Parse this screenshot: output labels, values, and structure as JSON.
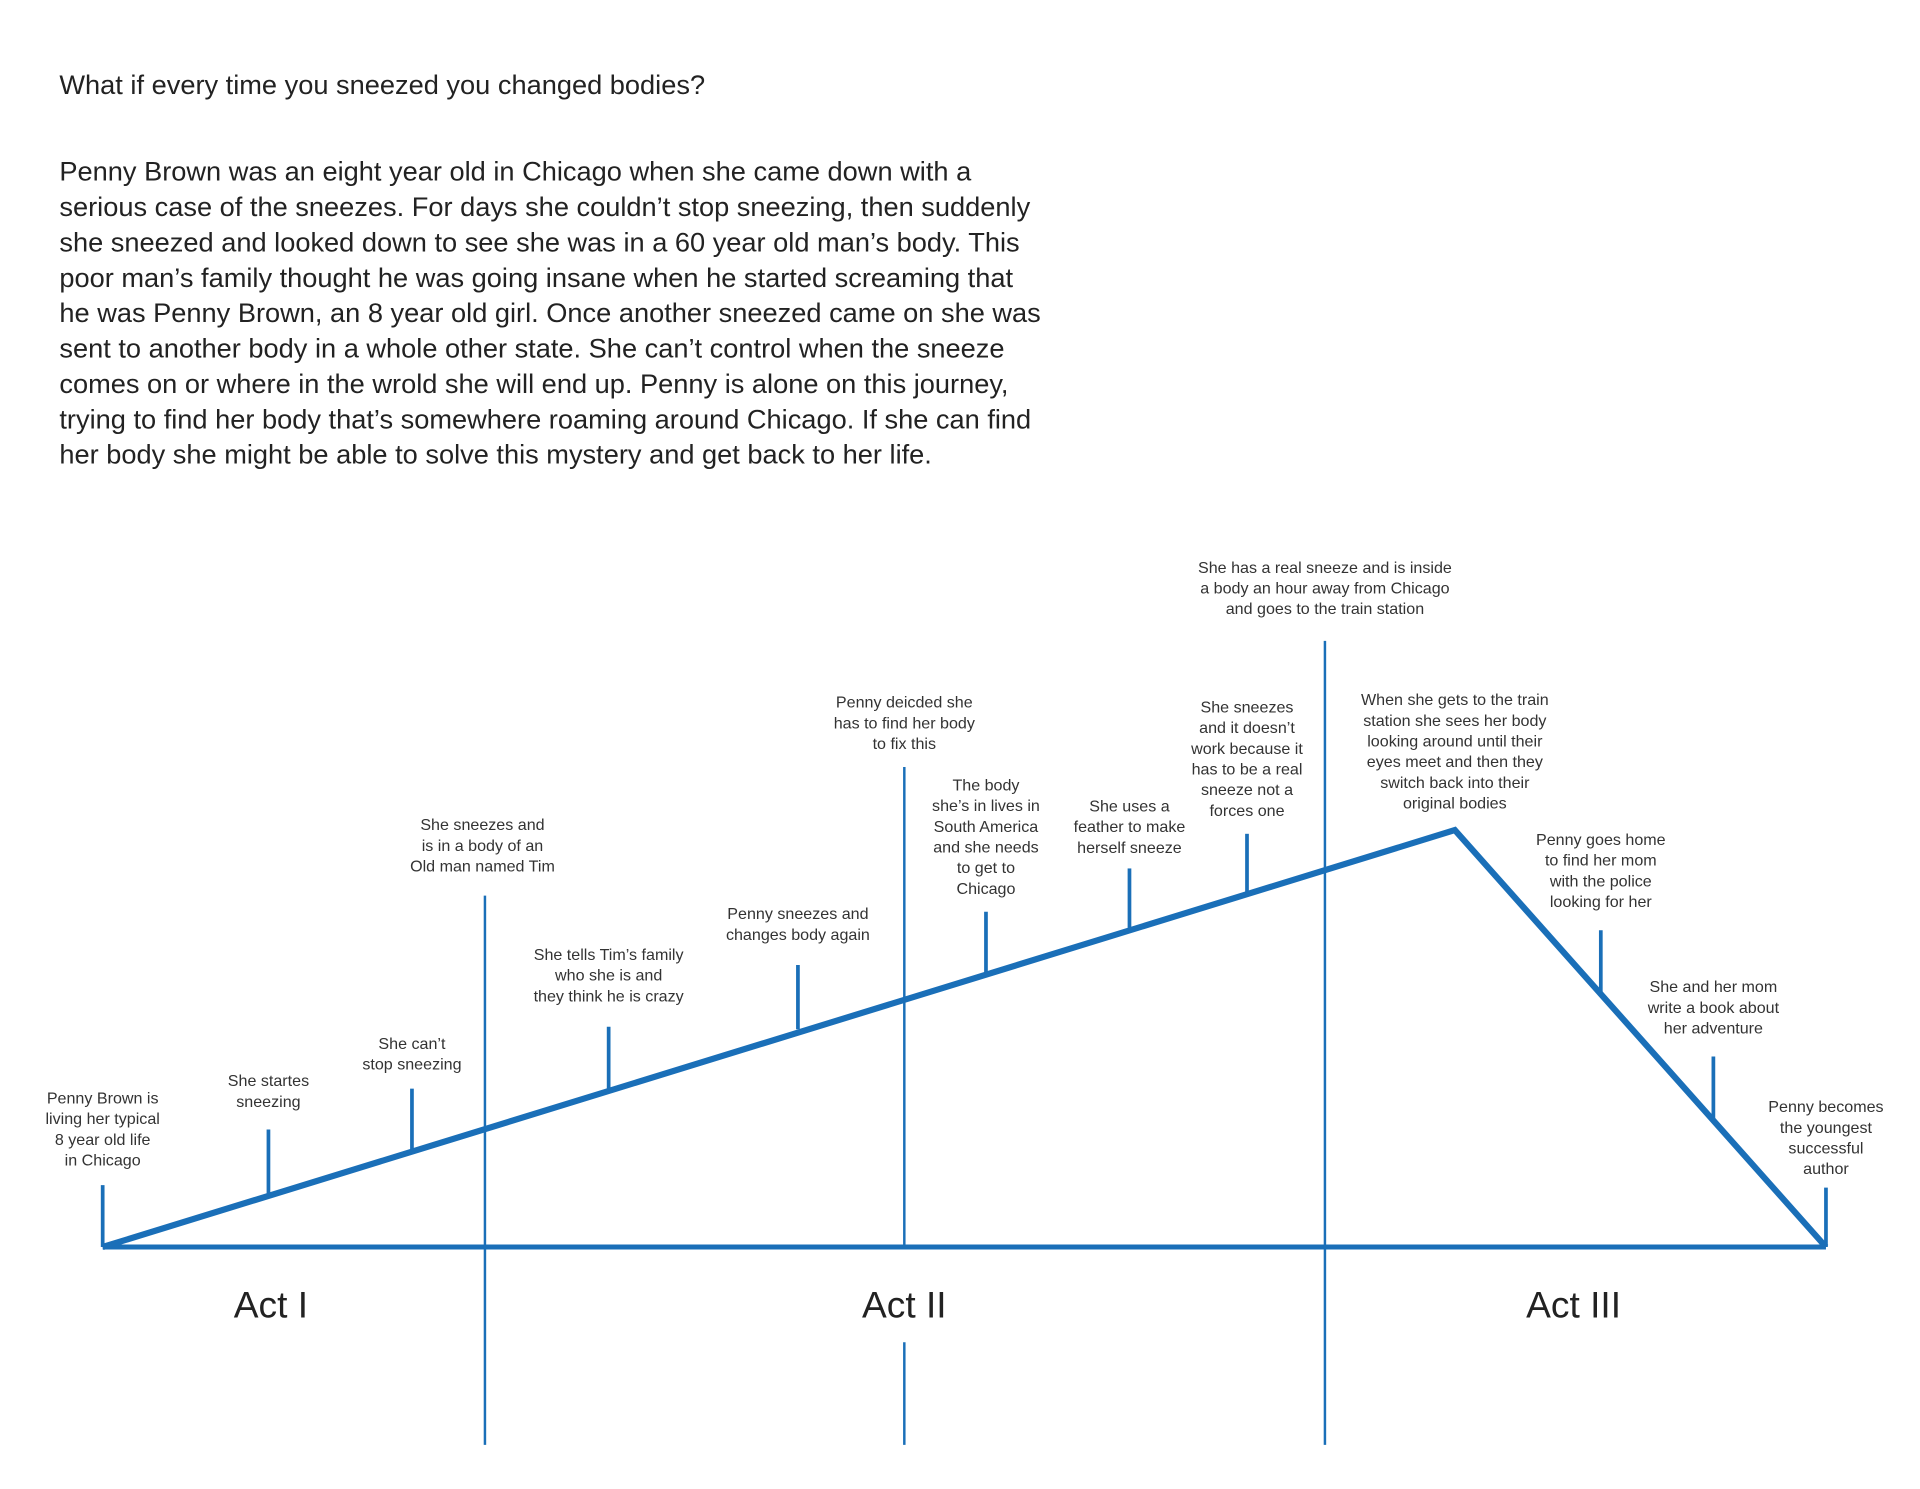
{
  "question": "What if every time you sneezed you changed bodies?",
  "story": {
    "lines": [
      "Penny Brown was an eight year old in Chicago when she came down with a",
      "serious case of the sneezes. For days she couldn’t stop sneezing, then suddenly",
      "she sneezed and looked down to see she was in a 60 year old man’s body. This",
      "poor man’s family thought he was going insane when he started screaming that",
      "he was Penny Brown, an 8 year old girl. Once another sneezed came on she was",
      "sent to another body in a whole other state. She can’t control when the sneeze",
      "comes on or where in the wrold she will end up. Penny is alone on this journey,",
      "trying to find her body that’s somewhere roaming around Chicago. If she can find",
      "her body she might be able to solve this mystery and get back to her life."
    ]
  },
  "acts": [
    "Act I",
    "Act II",
    "Act III"
  ],
  "events": [
    {
      "lines": [
        "Penny Brown is",
        "living her typical",
        "8 year old life",
        "in Chicago"
      ]
    },
    {
      "lines": [
        "She startes",
        "sneezing"
      ]
    },
    {
      "lines": [
        "She can’t",
        "stop sneezing"
      ]
    },
    {
      "lines": [
        "She sneezes and",
        "is in a body of an",
        "Old man named Tim"
      ]
    },
    {
      "lines": [
        "She tells Tim’s family",
        "who she is and",
        "they think he is crazy"
      ]
    },
    {
      "lines": [
        "Penny sneezes and",
        "changes body again"
      ]
    },
    {
      "lines": [
        "Penny deicded she",
        "has to find her body",
        "to fix this"
      ]
    },
    {
      "lines": [
        "The body",
        "she’s in lives in",
        "South America",
        "and she needs",
        "to get to",
        "Chicago"
      ]
    },
    {
      "lines": [
        "She uses a",
        "feather to make",
        "herself sneeze"
      ]
    },
    {
      "lines": [
        "She sneezes",
        "and it doesn’t",
        "work because it",
        "has to be a real",
        "sneeze not a",
        "forces one"
      ]
    },
    {
      "lines": [
        "She has a real sneeze and is inside",
        "a body an hour away from Chicago",
        "and goes to the train station"
      ]
    },
    {
      "lines": [
        "When she gets to the train",
        "station she sees her body",
        "looking around until their",
        "eyes meet and then they",
        "switch back into their",
        "original bodies"
      ]
    },
    {
      "lines": [
        "Penny goes home",
        "to find her mom",
        "with the police",
        "looking for her"
      ]
    },
    {
      "lines": [
        "She and her mom",
        "write a book about",
        "her adventure"
      ]
    },
    {
      "lines": [
        "Penny becomes",
        "the youngest",
        "successful",
        "author"
      ]
    }
  ]
}
